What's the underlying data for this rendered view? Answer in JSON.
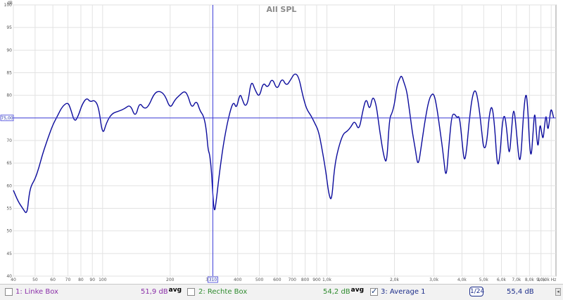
{
  "chart_data": {
    "type": "line",
    "title": "All SPL",
    "ylabel": "dB",
    "xlabel": "Hz",
    "x_scale": "log",
    "xlim": [
      40,
      10500
    ],
    "ylim": [
      40,
      100
    ],
    "y_ticks": [
      "40",
      "45",
      "50",
      "55",
      "60",
      "65",
      "70",
      "75",
      "80",
      "85",
      "90",
      "95",
      "100"
    ],
    "y_tick_values": [
      40,
      45,
      50,
      55,
      60,
      65,
      70,
      75,
      80,
      85,
      90,
      95,
      100
    ],
    "x_ticks": [
      "40",
      "50",
      "60",
      "70",
      "80",
      "90",
      "100",
      "200",
      "300",
      "400",
      "500",
      "600",
      "700",
      "800",
      "900",
      "1,0k",
      "2,0k",
      "3,0k",
      "4,0k",
      "5,0k",
      "6,0k",
      "7,0k",
      "8,0k",
      "9,0k",
      "10,0k Hz"
    ],
    "x_tick_values": [
      40,
      50,
      60,
      70,
      80,
      90,
      100,
      200,
      300,
      400,
      500,
      600,
      700,
      800,
      900,
      1000,
      2000,
      3000,
      4000,
      5000,
      6000,
      7000,
      8000,
      9000,
      10000
    ],
    "grid": true,
    "cursor": {
      "x": 310,
      "y": 75,
      "x_label": "310",
      "y_label": "75,00"
    },
    "series": [
      {
        "name": "3: Average 1",
        "color": "#0b0b9c",
        "points": [
          [
            40,
            59
          ],
          [
            42,
            56.5
          ],
          [
            44,
            55
          ],
          [
            46,
            53.5
          ],
          [
            47,
            58
          ],
          [
            48,
            60
          ],
          [
            50,
            61.5
          ],
          [
            52,
            64
          ],
          [
            54,
            67
          ],
          [
            57,
            70.5
          ],
          [
            60,
            73.5
          ],
          [
            63,
            75.5
          ],
          [
            66,
            77.5
          ],
          [
            70,
            78.5
          ],
          [
            72,
            77
          ],
          [
            75,
            74
          ],
          [
            78,
            75.5
          ],
          [
            81,
            78
          ],
          [
            85,
            79.5
          ],
          [
            88,
            78.5
          ],
          [
            92,
            79
          ],
          [
            96,
            77.5
          ],
          [
            100,
            71
          ],
          [
            104,
            74
          ],
          [
            110,
            76
          ],
          [
            118,
            76.5
          ],
          [
            125,
            77
          ],
          [
            133,
            78
          ],
          [
            140,
            75
          ],
          [
            146,
            78.5
          ],
          [
            153,
            77
          ],
          [
            160,
            77.5
          ],
          [
            170,
            80.5
          ],
          [
            180,
            81
          ],
          [
            190,
            80
          ],
          [
            200,
            77
          ],
          [
            210,
            79
          ],
          [
            220,
            80
          ],
          [
            232,
            81
          ],
          [
            240,
            80
          ],
          [
            250,
            77
          ],
          [
            262,
            79
          ],
          [
            272,
            76.5
          ],
          [
            282,
            75.5
          ],
          [
            290,
            72.5
          ],
          [
            295,
            68
          ],
          [
            300,
            67
          ],
          [
            305,
            64
          ],
          [
            310,
            58
          ],
          [
            315,
            54
          ],
          [
            320,
            56
          ],
          [
            330,
            62
          ],
          [
            345,
            69
          ],
          [
            360,
            74
          ],
          [
            375,
            77.5
          ],
          [
            385,
            78.5
          ],
          [
            395,
            77
          ],
          [
            410,
            80.5
          ],
          [
            420,
            79
          ],
          [
            432,
            77.5
          ],
          [
            445,
            78.5
          ],
          [
            460,
            83.5
          ],
          [
            480,
            81
          ],
          [
            500,
            79.5
          ],
          [
            520,
            83
          ],
          [
            545,
            81.5
          ],
          [
            570,
            84
          ],
          [
            600,
            81
          ],
          [
            630,
            84
          ],
          [
            660,
            82
          ],
          [
            690,
            83.5
          ],
          [
            720,
            85
          ],
          [
            750,
            84
          ],
          [
            780,
            80
          ],
          [
            810,
            77
          ],
          [
            850,
            75.5
          ],
          [
            880,
            74
          ],
          [
            920,
            72
          ],
          [
            960,
            67
          ],
          [
            990,
            63
          ],
          [
            1020,
            58
          ],
          [
            1050,
            56.5
          ],
          [
            1080,
            64
          ],
          [
            1120,
            68
          ],
          [
            1180,
            71.5
          ],
          [
            1230,
            72
          ],
          [
            1280,
            73
          ],
          [
            1330,
            74.5
          ],
          [
            1390,
            72
          ],
          [
            1450,
            77
          ],
          [
            1500,
            79.5
          ],
          [
            1550,
            76.5
          ],
          [
            1600,
            80
          ],
          [
            1660,
            78
          ],
          [
            1720,
            72
          ],
          [
            1800,
            66
          ],
          [
            1850,
            65
          ],
          [
            1900,
            75
          ],
          [
            1950,
            76
          ],
          [
            2000,
            78
          ],
          [
            2050,
            82
          ],
          [
            2100,
            83.5
          ],
          [
            2150,
            84.5
          ],
          [
            2200,
            83
          ],
          [
            2270,
            81
          ],
          [
            2330,
            77
          ],
          [
            2400,
            72
          ],
          [
            2480,
            68
          ],
          [
            2550,
            64
          ],
          [
            2640,
            69
          ],
          [
            2730,
            74
          ],
          [
            2820,
            78
          ],
          [
            2900,
            80
          ],
          [
            3000,
            80.5
          ],
          [
            3100,
            77
          ],
          [
            3200,
            72
          ],
          [
            3300,
            67
          ],
          [
            3400,
            61
          ],
          [
            3500,
            69
          ],
          [
            3600,
            75.5
          ],
          [
            3700,
            76
          ],
          [
            3800,
            75
          ],
          [
            3900,
            75.5
          ],
          [
            4000,
            70
          ],
          [
            4100,
            65
          ],
          [
            4200,
            68
          ],
          [
            4300,
            74
          ],
          [
            4450,
            80
          ],
          [
            4600,
            81.5
          ],
          [
            4750,
            78
          ],
          [
            4900,
            72
          ],
          [
            5000,
            68
          ],
          [
            5150,
            69
          ],
          [
            5300,
            76
          ],
          [
            5450,
            78
          ],
          [
            5600,
            73
          ],
          [
            5750,
            64
          ],
          [
            5900,
            66
          ],
          [
            6050,
            74
          ],
          [
            6200,
            76
          ],
          [
            6350,
            72
          ],
          [
            6500,
            66
          ],
          [
            6650,
            72
          ],
          [
            6800,
            78
          ],
          [
            7000,
            72
          ],
          [
            7200,
            65
          ],
          [
            7350,
            67
          ],
          [
            7500,
            75
          ],
          [
            7700,
            81
          ],
          [
            7850,
            78
          ],
          [
            8000,
            69
          ],
          [
            8150,
            66
          ],
          [
            8300,
            72
          ],
          [
            8450,
            77
          ],
          [
            8600,
            71
          ],
          [
            8750,
            68
          ],
          [
            8900,
            74
          ],
          [
            9050,
            72
          ],
          [
            9200,
            70
          ],
          [
            9350,
            73.5
          ],
          [
            9500,
            76
          ],
          [
            9650,
            72
          ],
          [
            9800,
            74
          ],
          [
            9950,
            77
          ],
          [
            10100,
            76.5
          ],
          [
            10250,
            75
          ]
        ]
      }
    ]
  },
  "legend": {
    "items": [
      {
        "label": "1: Linke Box",
        "value": "51,9 dB",
        "suffix": "avg",
        "color": "#8a2fa8",
        "checked": false
      },
      {
        "label": "2: Rechte Box",
        "value": "54,2 dB",
        "suffix": "avg",
        "color": "#2e8b2e",
        "checked": false
      },
      {
        "label": "3: Average 1",
        "checked": true,
        "color": "#1c2d8a"
      }
    ],
    "smoothing": "1/24",
    "avg_value": "55,4 dB"
  }
}
